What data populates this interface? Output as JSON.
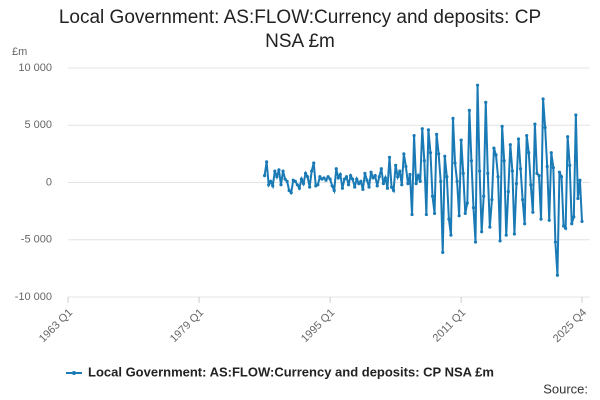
{
  "chart_data": {
    "type": "line",
    "title": "Local Government: AS:FLOW:Currency and deposits: CP NSA £m",
    "y_label": "£m",
    "source": "Source:",
    "categories": [
      "1963 Q1",
      null,
      null,
      null,
      null,
      null,
      null,
      null,
      null,
      null,
      null,
      null,
      null,
      null,
      null,
      null,
      null,
      null,
      null,
      null,
      null,
      null,
      null,
      null,
      null,
      null,
      null,
      null,
      null,
      null,
      null,
      null,
      null,
      null,
      null,
      null,
      null,
      null,
      null,
      null,
      null,
      null,
      null,
      null,
      null,
      null,
      null,
      null,
      null,
      null,
      null,
      null,
      null,
      null,
      null,
      null,
      null,
      null,
      null,
      null,
      null,
      null,
      null,
      null,
      "1979 Q1",
      null,
      null,
      null,
      null,
      null,
      null,
      null,
      null,
      null,
      null,
      null,
      null,
      null,
      null,
      null,
      null,
      null,
      null,
      null,
      null,
      null,
      null,
      null,
      null,
      null,
      null,
      null,
      null,
      null,
      null,
      null,
      null,
      null,
      null,
      null,
      null,
      null,
      null,
      null,
      null,
      null,
      null,
      null,
      null,
      null,
      null,
      null,
      null,
      null,
      null,
      null,
      null,
      null,
      null,
      null,
      null,
      null,
      null,
      null,
      null,
      null,
      null,
      null,
      "1995 Q1",
      null,
      null,
      null,
      null,
      null,
      null,
      null,
      null,
      null,
      null,
      null,
      null,
      null,
      null,
      null,
      null,
      null,
      null,
      null,
      null,
      null,
      null,
      null,
      null,
      null,
      null,
      null,
      null,
      null,
      null,
      null,
      null,
      null,
      null,
      null,
      null,
      null,
      null,
      null,
      null,
      null,
      null,
      null,
      null,
      null,
      null,
      null,
      null,
      null,
      null,
      null,
      null,
      null,
      null,
      null,
      null,
      null,
      null,
      null,
      null,
      null,
      null,
      null,
      "2011 Q1",
      null,
      null,
      null,
      null,
      null,
      null,
      null,
      null,
      null,
      null,
      null,
      null,
      null,
      null,
      null,
      null,
      null,
      null,
      null,
      null,
      null,
      null,
      null,
      null,
      null,
      null,
      null,
      null,
      null,
      null,
      null,
      null,
      null,
      null,
      null,
      null,
      null,
      null,
      null,
      null,
      null,
      null,
      null,
      null,
      null,
      null,
      null,
      null,
      null,
      null,
      null,
      null,
      null,
      null,
      null,
      null,
      null,
      null,
      "2025 Q4"
    ],
    "series": [
      {
        "name": "Local Government: AS:FLOW:Currency and deposits: CP NSA £m",
        "color": "#1a7ab5",
        "values": [
          null,
          null,
          null,
          null,
          null,
          null,
          null,
          null,
          null,
          null,
          null,
          null,
          null,
          null,
          null,
          null,
          null,
          null,
          null,
          null,
          null,
          null,
          null,
          null,
          null,
          null,
          null,
          null,
          null,
          null,
          null,
          null,
          null,
          null,
          null,
          null,
          null,
          null,
          null,
          null,
          null,
          null,
          null,
          null,
          null,
          null,
          null,
          null,
          null,
          null,
          null,
          null,
          null,
          null,
          null,
          null,
          null,
          null,
          null,
          null,
          null,
          null,
          null,
          null,
          null,
          null,
          null,
          null,
          null,
          null,
          null,
          null,
          null,
          null,
          null,
          null,
          null,
          null,
          null,
          null,
          null,
          null,
          null,
          null,
          null,
          null,
          null,
          null,
          null,
          null,
          null,
          null,
          null,
          null,
          null,
          null,
          600,
          1800,
          -200,
          100,
          -300,
          1000,
          500,
          1100,
          -200,
          1000,
          300,
          100,
          -700,
          -900,
          200,
          100,
          -200,
          -500,
          300,
          -100,
          800,
          500,
          -400,
          1000,
          1700,
          -300,
          -200,
          500,
          300,
          400,
          200,
          500,
          300,
          -300,
          -700,
          1200,
          400,
          700,
          -500,
          300,
          500,
          -200,
          600,
          300,
          -400,
          300,
          -100,
          100,
          -600,
          800,
          200,
          -400,
          900,
          400,
          600,
          -300,
          500,
          1200,
          -100,
          400,
          -500,
          2200,
          -400,
          -700,
          1500,
          500,
          1000,
          -200,
          2500,
          1400,
          -100,
          700,
          -2800,
          4100,
          -100,
          600,
          100,
          4700,
          1900,
          -2800,
          4600,
          2600,
          -1200,
          -2700,
          4200,
          2500,
          100,
          -6100,
          2300,
          500,
          -3200,
          -4600,
          5600,
          1700,
          100,
          -2900,
          3700,
          800,
          -2700,
          -1800,
          6300,
          1900,
          -2200,
          -5200,
          8500,
          1000,
          -4300,
          -1200,
          7000,
          800,
          -3900,
          -1500,
          3000,
          2400,
          500,
          -5100,
          4900,
          1900,
          -4600,
          -800,
          3300,
          1000,
          -4500,
          -100,
          3800,
          1200,
          -1500,
          -3600,
          4100,
          2600,
          -200,
          -2600,
          5100,
          800,
          600,
          -3200,
          7300,
          4800,
          1400,
          -3300,
          2600,
          1300,
          -5200,
          -8100,
          900,
          500,
          -3800,
          -4000,
          4000,
          1500,
          -3600,
          -3000,
          5900,
          -1400,
          200,
          -3400
        ]
      }
    ],
    "ylim": [
      -10000,
      10000
    ],
    "yticks": [
      {
        "value": -10000,
        "label": "-10 000"
      },
      {
        "value": -5000,
        "label": "-5 000"
      },
      0,
      {
        "value": 5000,
        "label": "5 000"
      },
      {
        "value": 10000,
        "label": "10 000"
      }
    ],
    "grid": true,
    "legend": "bottom"
  }
}
